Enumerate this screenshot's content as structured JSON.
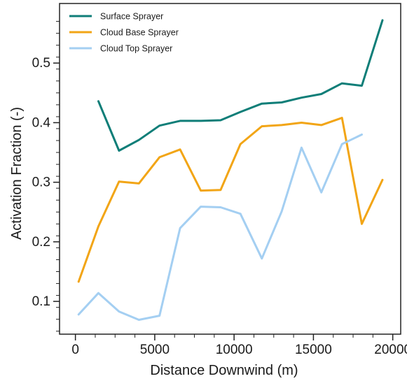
{
  "chart_data": {
    "type": "line",
    "xlabel": "Distance Downwind (m)",
    "ylabel": "Activation Fraction (-)",
    "xlim": [
      -1000,
      20500
    ],
    "ylim": [
      0.045,
      0.6
    ],
    "xticks": [
      0,
      5000,
      10000,
      15000,
      20000
    ],
    "yticks": [
      0.1,
      0.2,
      0.3,
      0.4,
      0.5
    ],
    "xtick_labels": [
      "0",
      "5000",
      "10000",
      "15000",
      "20000"
    ],
    "ytick_labels": [
      "0.1",
      "0.2",
      "0.3",
      "0.4",
      "0.5"
    ],
    "legend_position": "top-left",
    "grid": false,
    "series": [
      {
        "name": "Surface Sprayer",
        "color": "#0f7e78",
        "x": [
          1450,
          2750,
          4000,
          5300,
          6600,
          7900,
          9150,
          10400,
          11750,
          13000,
          14250,
          15500,
          16800,
          18050,
          19350
        ],
        "y": [
          0.436,
          0.353,
          0.371,
          0.395,
          0.403,
          0.403,
          0.404,
          0.418,
          0.432,
          0.434,
          0.442,
          0.448,
          0.466,
          0.462,
          0.572
        ]
      },
      {
        "name": "Cloud Base Sprayer",
        "color": "#f2a516",
        "x": [
          200,
          1450,
          2750,
          4000,
          5300,
          6600,
          7900,
          9150,
          10400,
          11750,
          13000,
          14250,
          15500,
          16800,
          18050,
          19350
        ],
        "y": [
          0.133,
          0.226,
          0.301,
          0.298,
          0.342,
          0.355,
          0.286,
          0.287,
          0.364,
          0.394,
          0.396,
          0.4,
          0.396,
          0.408,
          0.23,
          0.304
        ]
      },
      {
        "name": "Cloud Top Sprayer",
        "color": "#a4cff2",
        "x": [
          200,
          1450,
          2750,
          4000,
          5300,
          6600,
          7900,
          9150,
          10400,
          11750,
          13000,
          14250,
          15500,
          16800,
          18050
        ],
        "y": [
          0.078,
          0.114,
          0.083,
          0.069,
          0.076,
          0.223,
          0.259,
          0.258,
          0.247,
          0.172,
          0.251,
          0.358,
          0.283,
          0.364,
          0.38
        ]
      }
    ]
  }
}
